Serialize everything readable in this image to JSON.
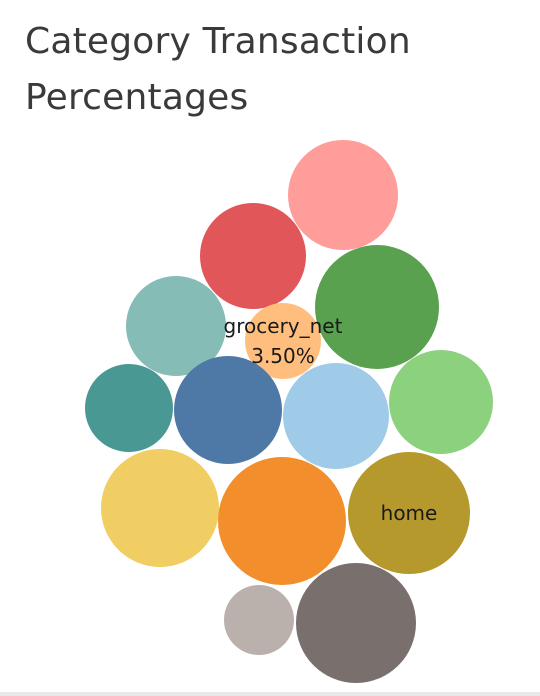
{
  "title": "Category Transaction Percentages",
  "title_lines": [
    "Category Transaction",
    "Percentages"
  ],
  "chart_data": {
    "type": "packed-bubble",
    "title": "Category Transaction Percentages",
    "value_format": "percent",
    "bubbles": [
      {
        "category": "",
        "color": "#ff9d9a"
      },
      {
        "category": "",
        "color": "#e15759"
      },
      {
        "category": "",
        "color": "#59a14f"
      },
      {
        "category": "",
        "color": "#86bcb6"
      },
      {
        "category": "grocery_net",
        "value": 3.5,
        "label": "3.50%",
        "color": "#ffbe7d"
      },
      {
        "category": "",
        "color": "#499894"
      },
      {
        "category": "",
        "color": "#4e79a7"
      },
      {
        "category": "",
        "color": "#a0cbe8"
      },
      {
        "category": "",
        "color": "#8cd17d"
      },
      {
        "category": "",
        "color": "#f1ce63"
      },
      {
        "category": "",
        "color": "#f28e2b"
      },
      {
        "category": "home",
        "color": "#b6992d"
      },
      {
        "category": "",
        "color": "#bab0ac"
      },
      {
        "category": "",
        "color": "#79706e"
      }
    ]
  }
}
